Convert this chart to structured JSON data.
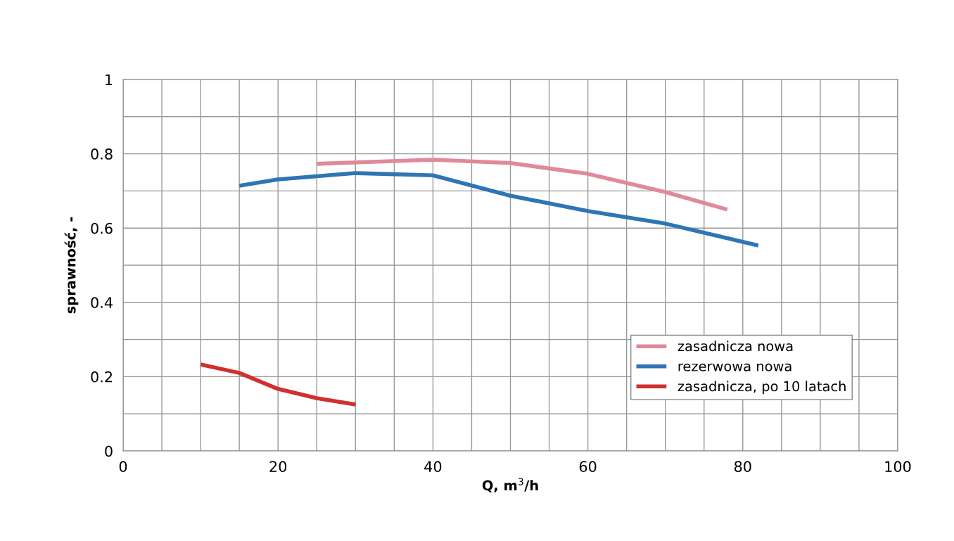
{
  "chart_data": {
    "type": "line",
    "xlabel": "Q, m$^{3}$/h",
    "ylabel": "sprawność, -",
    "xlim": [
      0,
      100
    ],
    "ylim": [
      0,
      1
    ],
    "xticks": [
      0,
      {
        "value": 5,
        "label": null
      },
      {
        "value": 10,
        "label": null
      },
      {
        "value": 15,
        "label": null
      },
      20,
      {
        "value": 25,
        "label": null
      },
      {
        "value": 30,
        "label": null
      },
      {
        "value": 35,
        "label": null
      },
      40,
      {
        "value": 45,
        "label": null
      },
      {
        "value": 50,
        "label": null
      },
      {
        "value": 55,
        "label": null
      },
      60,
      {
        "value": 65,
        "label": null
      },
      {
        "value": 70,
        "label": null
      },
      {
        "value": 75,
        "label": null
      },
      80,
      {
        "value": 85,
        "label": null
      },
      {
        "value": 90,
        "label": null
      },
      {
        "value": 95,
        "label": null
      },
      100
    ],
    "yticks": [
      0,
      {
        "value": 0.1,
        "label": null
      },
      0.2,
      {
        "value": 0.3,
        "label": null
      },
      0.4,
      {
        "value": 0.5,
        "label": null
      },
      0.6,
      {
        "value": 0.7,
        "label": null
      },
      0.8,
      {
        "value": 0.9,
        "label": null
      },
      1
    ],
    "grid": true,
    "legend": "bottom right",
    "marker": "none",
    "line_style": "solid",
    "series": [
      {
        "name": "zasadnicza nowa",
        "color": "#e0899a",
        "x": [
          25,
          40,
          50,
          60,
          70,
          78
        ],
        "values": [
          0.773,
          0.784,
          0.775,
          0.746,
          0.697,
          0.65
        ]
      },
      {
        "name": "rezerwowa nowa",
        "color": "#2e75b6",
        "x": [
          15,
          20,
          30,
          40,
          50,
          60,
          70,
          82
        ],
        "values": [
          0.714,
          0.731,
          0.748,
          0.742,
          0.687,
          0.646,
          0.612,
          0.553
        ]
      },
      {
        "name": "zasadnicza, po 10 latach",
        "color": "#d03030",
        "x": [
          10,
          15,
          20,
          25,
          30
        ],
        "values": [
          0.233,
          0.21,
          0.167,
          0.142,
          0.125
        ]
      }
    ]
  }
}
